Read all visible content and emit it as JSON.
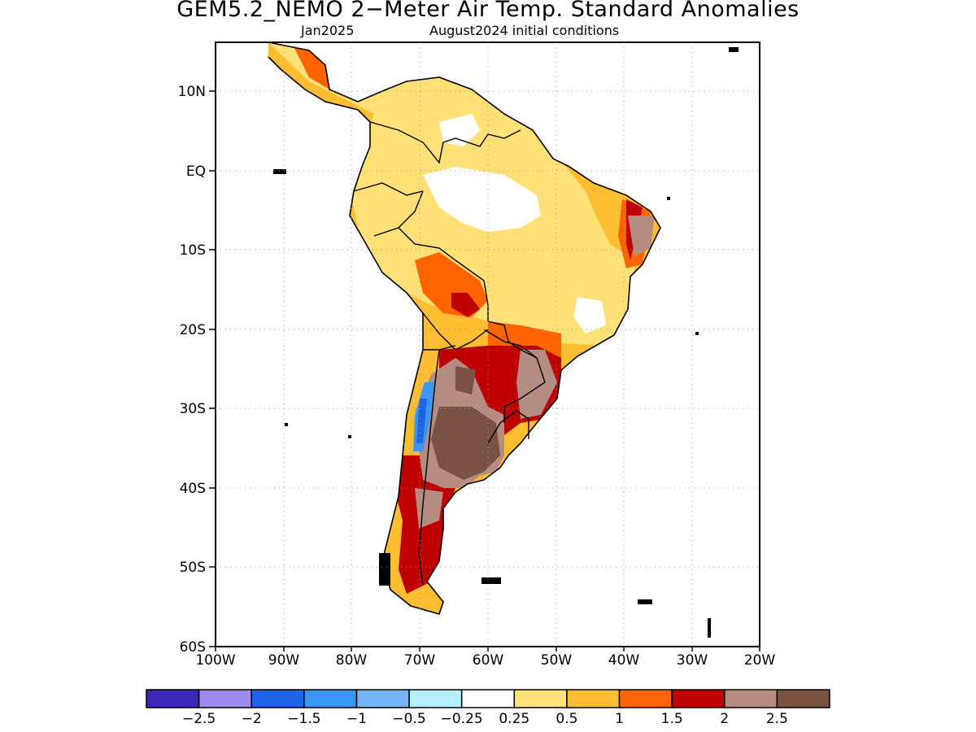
{
  "title": "GEM5.2_NEMO 2−Meter Air Temp. Standard Anomalies",
  "subtitle_left": "Jan2025",
  "subtitle_right": "August2024 initial conditions",
  "lat_labels": [
    "10N",
    "EQ",
    "10S",
    "20S",
    "30S",
    "40S",
    "50S",
    "60S"
  ],
  "lon_labels": [
    "100W",
    "90W",
    "80W",
    "70W",
    "60W",
    "50W",
    "40W",
    "30W",
    "20W"
  ],
  "legend": {
    "colors": [
      "#3c28b4",
      "#a08cf0",
      "#1f64e6",
      "#3c96f5",
      "#78b4fa",
      "#b4f0fa",
      "#ffffff",
      "#ffe178",
      "#ffbe32",
      "#ff6400",
      "#be0000",
      "#b48c82",
      "#7a5244"
    ],
    "labels": [
      "−2.5",
      "−2",
      "−1.5",
      "−1",
      "−0.5",
      "−0.25",
      "0.25",
      "0.5",
      "1",
      "1.5",
      "2",
      "2.5"
    ]
  },
  "palette": {
    "lt_orange": "#ffe178",
    "orange": "#ffbe32",
    "dk_orange": "#ff6400",
    "red": "#be0000",
    "brown_lt": "#b48c82",
    "brown_dk": "#7a5244",
    "blue": "#3c96f5",
    "dk_blue": "#1f64e6"
  }
}
